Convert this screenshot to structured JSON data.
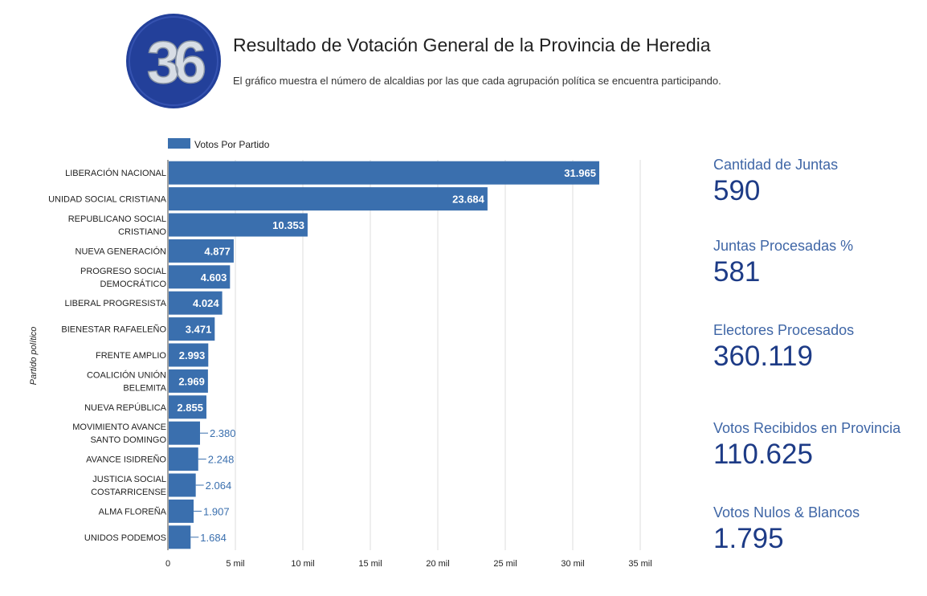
{
  "header": {
    "title": "Resultado de Votación General de la Provincia de Heredia",
    "subtitle": "El gráfico muestra el número de alcaldias por las que cada agrupación política se encuentra participando.",
    "logo_text": "36"
  },
  "chart_data": {
    "type": "bar",
    "orientation": "horizontal",
    "title": "",
    "ylabel": "Partido político",
    "xlabel": "",
    "xlim": [
      0,
      35000
    ],
    "x_ticks": [
      {
        "value": 0,
        "label": "0"
      },
      {
        "value": 5000,
        "label": "5 mil"
      },
      {
        "value": 10000,
        "label": "10 mil"
      },
      {
        "value": 15000,
        "label": "15 mil"
      },
      {
        "value": 20000,
        "label": "20 mil"
      },
      {
        "value": 25000,
        "label": "25 mil"
      },
      {
        "value": 30000,
        "label": "30 mil"
      },
      {
        "value": 35000,
        "label": "35 mil"
      }
    ],
    "grid": true,
    "legend_position": "top-left",
    "series": [
      {
        "name": "Votos Por Partido",
        "color": "#3a6fae",
        "categories": [
          [
            "LIBERACIÓN NACIONAL"
          ],
          [
            "UNIDAD SOCIAL CRISTIANA"
          ],
          [
            "REPUBLICANO SOCIAL",
            "CRISTIANO"
          ],
          [
            "NUEVA GENERACIÓN"
          ],
          [
            "PROGRESO SOCIAL",
            "DEMOCRÁTICO"
          ],
          [
            "LIBERAL PROGRESISTA"
          ],
          [
            "BIENESTAR RAFAELEÑO"
          ],
          [
            "FRENTE AMPLIO"
          ],
          [
            "COALICIÓN UNIÓN",
            "BELEMITA"
          ],
          [
            "NUEVA REPÚBLICA"
          ],
          [
            "MOVIMIENTO AVANCE",
            "SANTO DOMINGO"
          ],
          [
            "AVANCE ISIDREÑO"
          ],
          [
            "JUSTICIA SOCIAL",
            "COSTARRICENSE"
          ],
          [
            "ALMA FLOREÑA"
          ],
          [
            "UNIDOS PODEMOS"
          ]
        ],
        "values": [
          31965,
          23684,
          10353,
          4877,
          4603,
          4024,
          3471,
          2993,
          2969,
          2855,
          2380,
          2248,
          2064,
          1907,
          1684
        ],
        "value_labels": [
          "31.965",
          "23.684",
          "10.353",
          "4.877",
          "4.603",
          "4.024",
          "3.471",
          "2.993",
          "2.969",
          "2.855",
          "2.380",
          "2.248",
          "2.064",
          "1.907",
          "1.684"
        ]
      }
    ]
  },
  "stats": [
    {
      "label": "Cantidad de Juntas",
      "value": "590"
    },
    {
      "label": "Juntas Procesadas %",
      "value": "581"
    },
    {
      "label": "Electores Procesados",
      "value": "360.119"
    },
    {
      "label": "Votos Recibidos en Provincia",
      "value": "110.625"
    },
    {
      "label": "Votos Nulos & Blancos",
      "value": "1.795"
    }
  ],
  "colors": {
    "bar": "#3a6fae",
    "stat_label": "#3f66a6",
    "stat_value": "#1d3b86",
    "logo_ring": "#23409a"
  }
}
